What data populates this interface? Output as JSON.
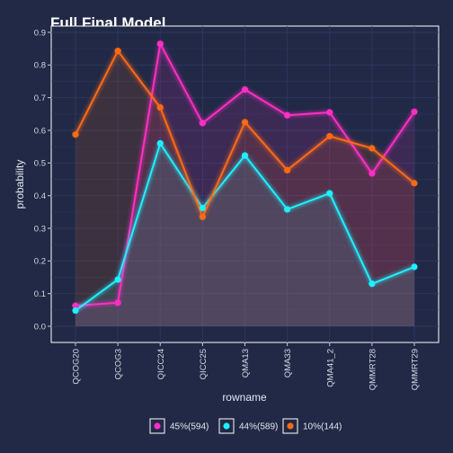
{
  "chart_data": {
    "type": "line",
    "title": "Full Final Model",
    "xlabel": "rowname",
    "ylabel": "probability",
    "ylim": [
      -0.02,
      0.9
    ],
    "yticks": [
      0.0,
      0.1,
      0.2,
      0.3,
      0.4,
      0.5,
      0.6,
      0.7,
      0.8,
      0.9
    ],
    "ytick_labels": [
      "0.0",
      "0.1",
      "0.2",
      "0.3",
      "0.4",
      "0.5",
      "0.6",
      "0.7",
      "0.8",
      "0.9"
    ],
    "categories": [
      "QCOG20",
      "QCOG3",
      "QICC24",
      "QICC25",
      "QMA13",
      "QMA33",
      "QMA41_2",
      "QMMRT28",
      "QMMRT29"
    ],
    "grid": true,
    "legend_position": "bottom",
    "series": [
      {
        "name": "45%(594)",
        "color": "#ff2ec4",
        "values": [
          0.063,
          0.072,
          0.865,
          0.622,
          0.725,
          0.646,
          0.655,
          0.468,
          0.657
        ]
      },
      {
        "name": "44%(589)",
        "color": "#1ef0ff",
        "values": [
          0.048,
          0.143,
          0.56,
          0.362,
          0.523,
          0.358,
          0.407,
          0.13,
          0.182
        ]
      },
      {
        "name": "10%(144)",
        "color": "#ff6a13",
        "values": [
          0.587,
          0.843,
          0.67,
          0.335,
          0.625,
          0.478,
          0.582,
          0.545,
          0.438
        ]
      }
    ]
  }
}
